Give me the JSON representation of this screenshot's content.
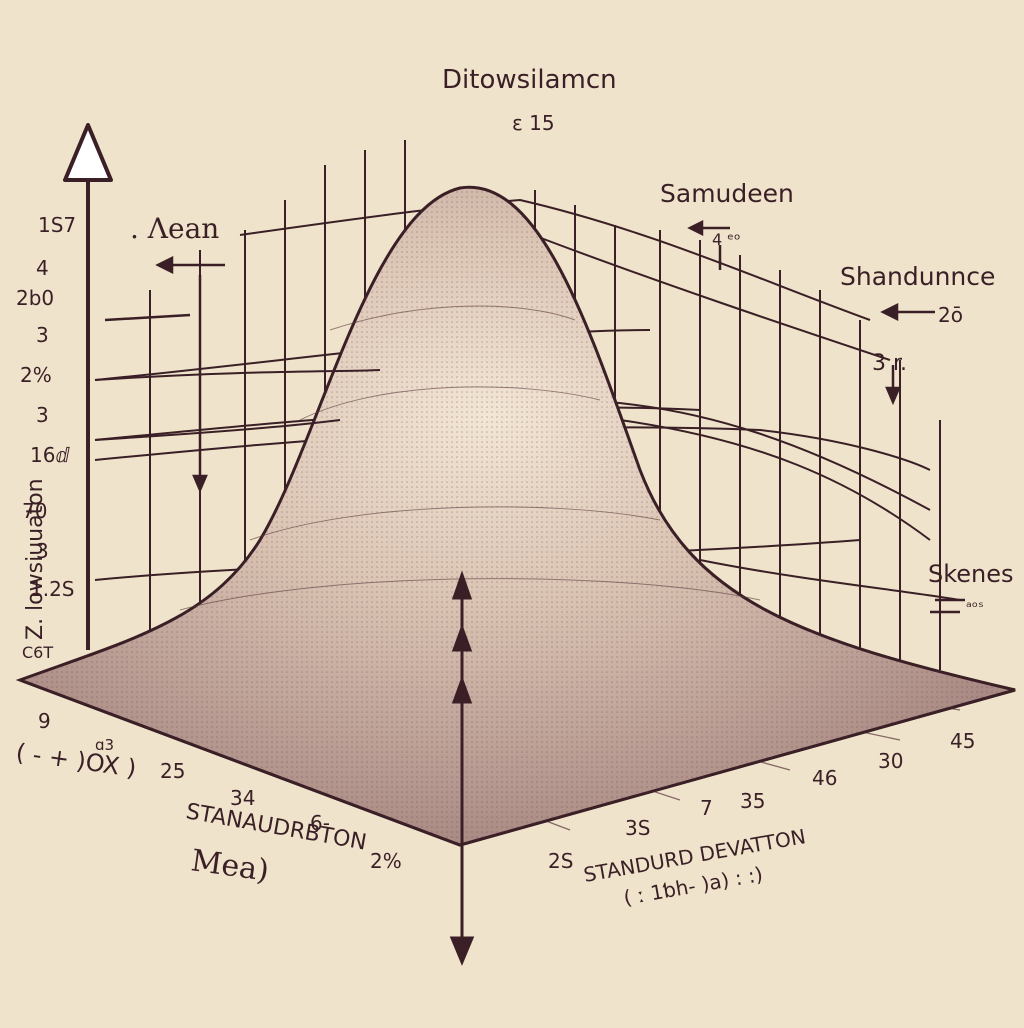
{
  "title": "Ditowsilamcn",
  "title_sub": "ε 15",
  "labels": {
    "lean": ". Λean",
    "samudeen": "Samudeen",
    "samudeen_sub": "4 ᵉᵒ",
    "shandunnce": "Shandunnce",
    "shandunnce_sub": "2ō",
    "three_r": "3 r.",
    "skenes": "Skenes",
    "skenes_sub": "ᵃᵒˢ",
    "vertical_axis": "Z. lowsiuuaton",
    "stanuurdrbton": "STANAUDRBTON",
    "mea": "Mea)",
    "standurd_deviation": "STANDURD DEVATTON",
    "x_axis_left": "( - + )OX )",
    "x_axis_right": "( ː 1ƅh- )a) : :)"
  },
  "left_ticks": [
    "1S7",
    "4",
    "2b0",
    "3",
    "2%",
    "3",
    "16ⅆ",
    "70",
    "3",
    "1.2S",
    "C6T"
  ],
  "bottom_ticks": [
    "9",
    "ɑ3",
    "25",
    "34",
    "6-",
    "2%",
    "3S",
    "7",
    "35",
    "46",
    "30",
    "45",
    "2S"
  ],
  "colors": {
    "paper": "#efe3cb",
    "ink": "#3a1f26",
    "curve_fill": "#e2cfbc",
    "curve_dark": "#9e7f7b"
  }
}
